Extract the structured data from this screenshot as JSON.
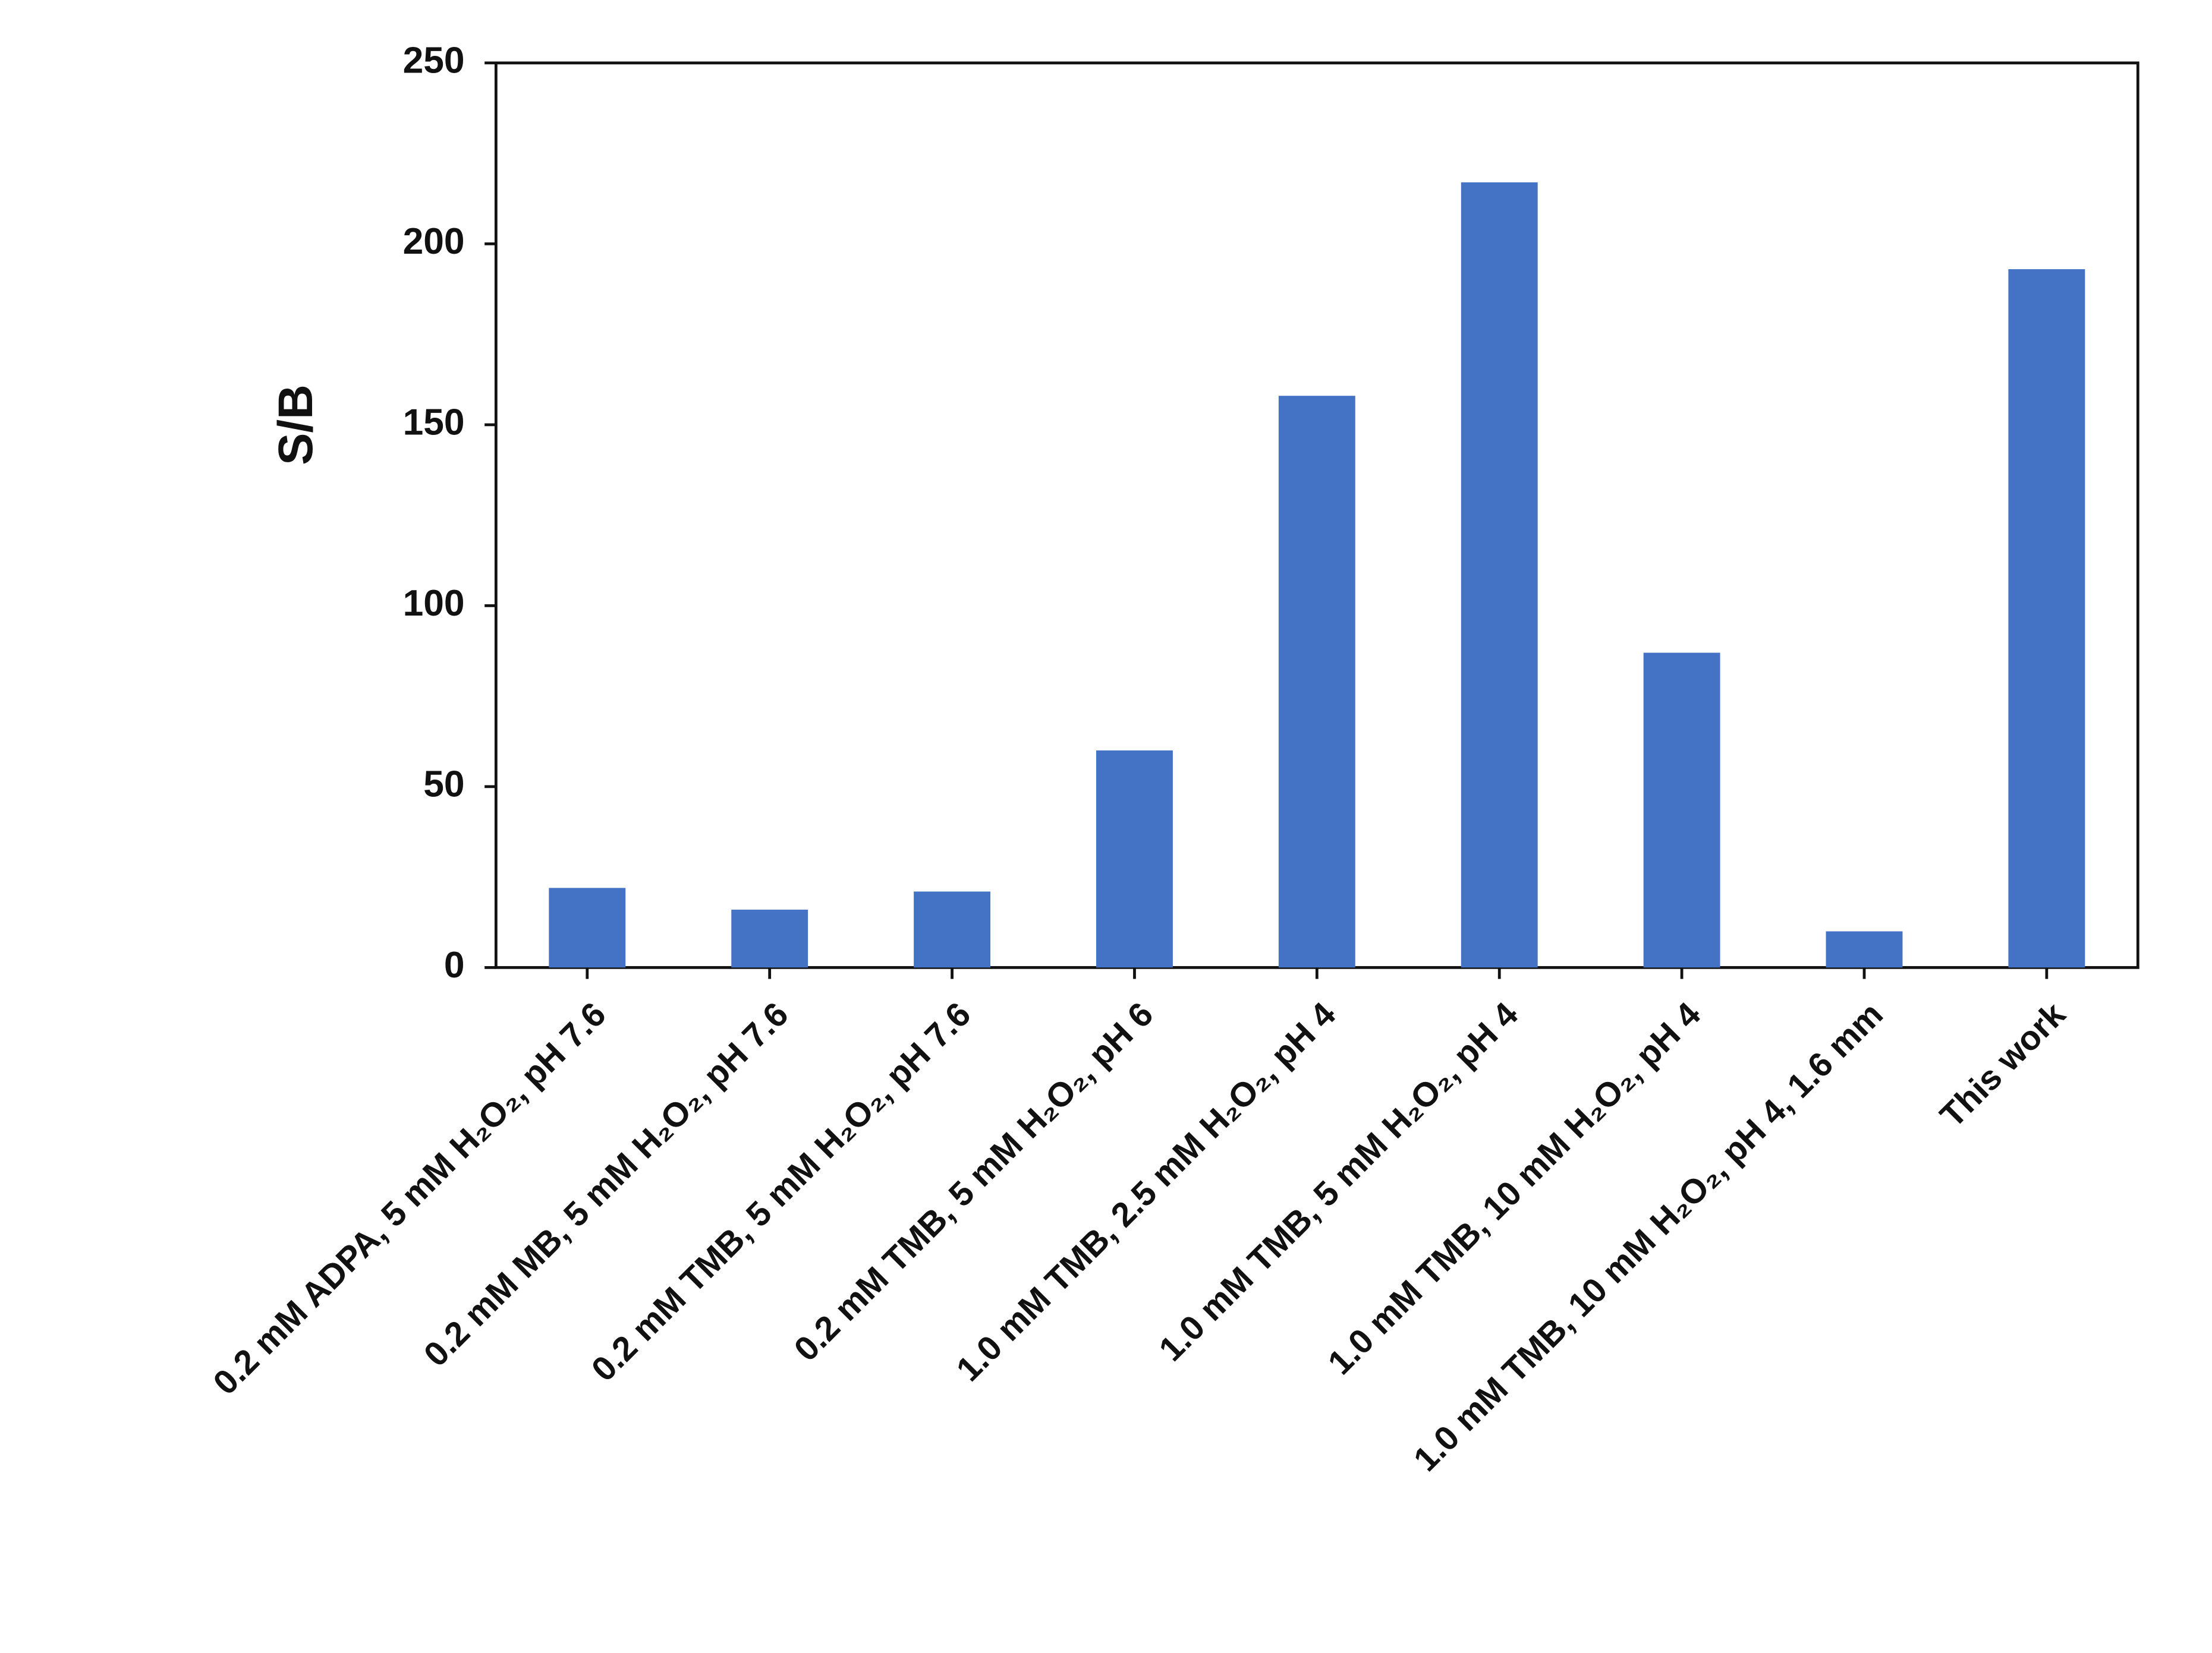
{
  "chart_data": {
    "type": "bar",
    "y_label": "S/B",
    "categories": [
      "0.2 mM ADPA, 5 mM H₂O₂, pH 7.6",
      "0.2 mM MB, 5 mM H₂O₂, pH 7.6",
      "0.2 mM TMB, 5 mM H₂O₂, pH 7.6",
      "0.2 mM TMB, 5 mM  H₂O₂, pH 6",
      "1.0 mM TMB, 2.5 mM H₂O₂, pH 4",
      "1.0 mM TMB, 5 mM H₂O₂, pH 4",
      "1.0 mM TMB, 10 mM H₂O₂, pH 4",
      "1.0 mM TMB, 10 mM H₂O₂, pH 4, 1.6 mm",
      "This work"
    ],
    "values": [
      22,
      16,
      21,
      60,
      158,
      217,
      87,
      10,
      193
    ],
    "color": "#4472c4",
    "ylim": [
      0,
      250
    ],
    "yticks": [
      0,
      50,
      100,
      150,
      200,
      250
    ],
    "grid": false
  }
}
